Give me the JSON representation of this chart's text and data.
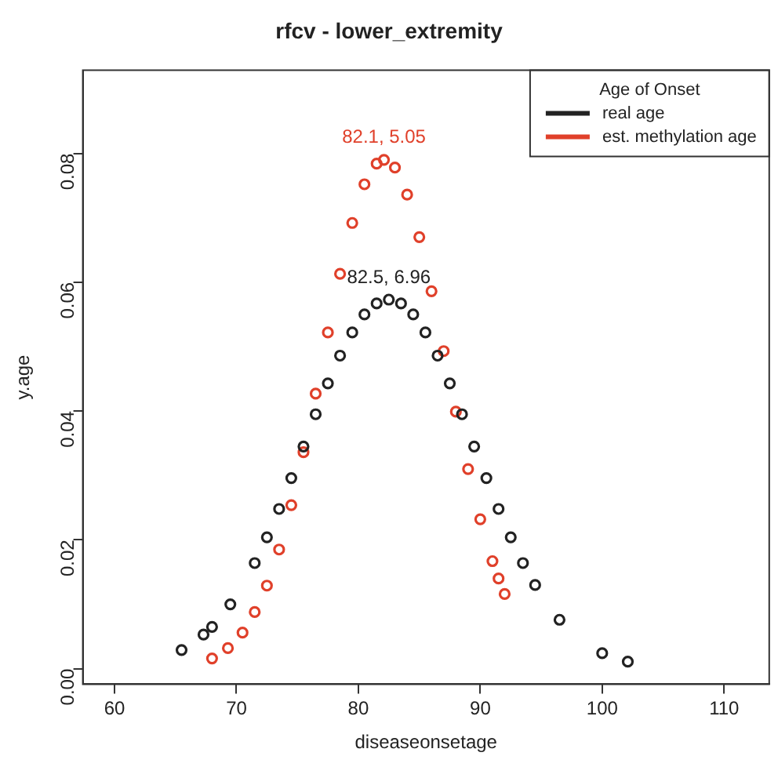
{
  "chart_data": {
    "type": "scatter",
    "title": "rfcv - lower_extremity",
    "xlabel": "diseaseonsetage",
    "ylabel": "y.age",
    "legend_title": "Age of Onset",
    "legend": "top right",
    "marker": "circle",
    "grid": false,
    "xlim": [
      57.4,
      113.7
    ],
    "xticks": [
      60,
      70,
      80,
      90,
      100,
      110
    ],
    "ylim": [
      -0.0024,
      0.0929
    ],
    "yticks": [
      {
        "value": 0,
        "label": "0.00"
      },
      {
        "value": 0.02,
        "label": "0.02"
      },
      {
        "value": 0.04,
        "label": "0.04"
      },
      {
        "value": 0.06,
        "label": "0.06"
      },
      {
        "value": 0.08,
        "label": "0.08"
      }
    ],
    "series": [
      {
        "name": "real age",
        "color": "#222222",
        "x": [
          65.5,
          67.3,
          68,
          69.5,
          71.5,
          72.5,
          73.5,
          74.5,
          75.5,
          76.5,
          77.5,
          78.5,
          79.5,
          80.5,
          81.5,
          82.5,
          83.5,
          84.5,
          85.5,
          86.5,
          87.5,
          88.5,
          89.5,
          90.5,
          91.5,
          92.5,
          93.5,
          94.5,
          96.5,
          100,
          102.1
        ],
        "values": [
          0.0029,
          0.0053,
          0.0065,
          0.01,
          0.0164,
          0.0204,
          0.0248,
          0.0296,
          0.0345,
          0.0395,
          0.0443,
          0.0486,
          0.0522,
          0.055,
          0.0567,
          0.0573,
          0.0567,
          0.055,
          0.0522,
          0.0486,
          0.0443,
          0.0395,
          0.0345,
          0.0296,
          0.0248,
          0.0204,
          0.0164,
          0.013,
          0.0076,
          0.0024,
          0.0011
        ]
      },
      {
        "name": "est. methylation age",
        "color": "#e0402a",
        "x": [
          68,
          69.3,
          70.5,
          71.5,
          72.5,
          73.5,
          74.5,
          75.5,
          76.5,
          77.5,
          78.5,
          79.5,
          80.5,
          81.5,
          82.1,
          83,
          84,
          85,
          86,
          87,
          88,
          89,
          90,
          91,
          91.5,
          92
        ],
        "values": [
          0.0016,
          0.0032,
          0.0056,
          0.0088,
          0.0129,
          0.0185,
          0.0254,
          0.0336,
          0.0427,
          0.0522,
          0.0613,
          0.0692,
          0.0752,
          0.0784,
          0.079,
          0.0778,
          0.0736,
          0.067,
          0.0586,
          0.0493,
          0.0399,
          0.031,
          0.0232,
          0.0167,
          0.014,
          0.0116
        ]
      }
    ],
    "annotations": [
      "82.5, 6.96",
      "82.1, 5.05"
    ]
  }
}
